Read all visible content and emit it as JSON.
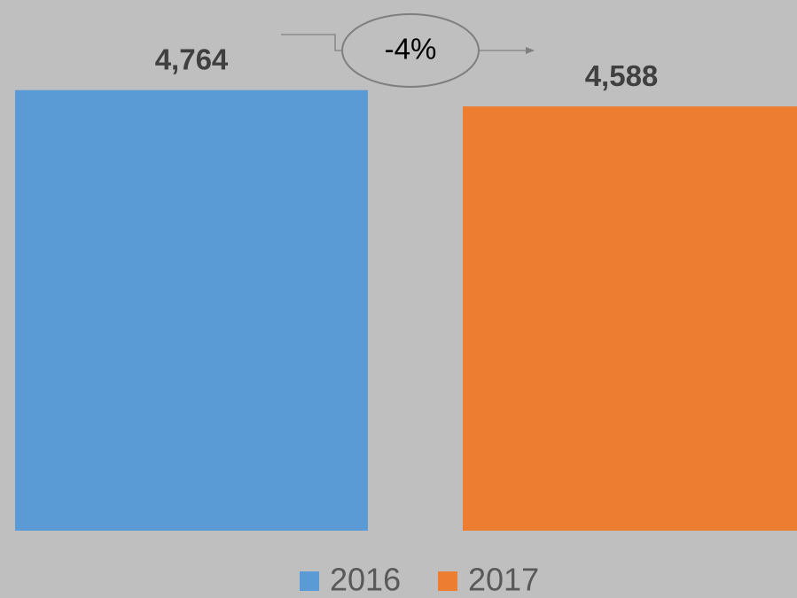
{
  "chart_data": {
    "type": "bar",
    "series": [
      {
        "name": "2016",
        "color": "#5b9bd5",
        "values": [
          4764
        ],
        "value_labels": [
          "4,764"
        ]
      },
      {
        "name": "2017",
        "color": "#ed7d31",
        "values": [
          4588
        ],
        "value_labels": [
          "4,588"
        ]
      }
    ],
    "annotation": "-4%",
    "ylim": [
      0,
      5700
    ],
    "legend": "bottom"
  }
}
